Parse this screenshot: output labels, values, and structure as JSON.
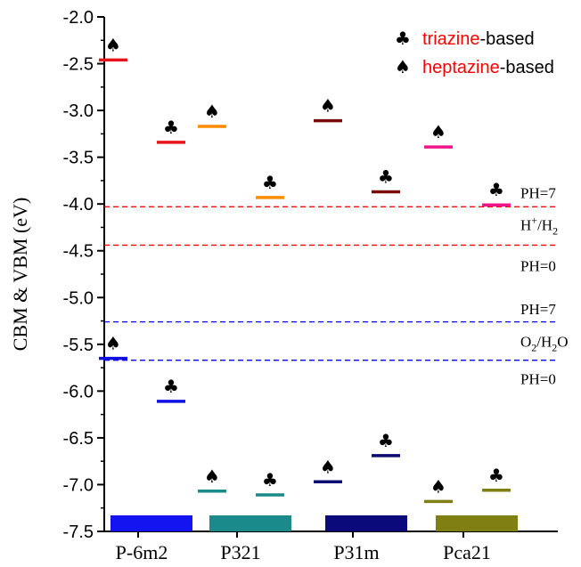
{
  "chart_data": {
    "type": "scatter",
    "ylabel": "CBM & VBM (eV)",
    "ylim": [
      -7.5,
      -2.0
    ],
    "ytick_step": 0.5,
    "ytick_labels": [
      "-2.0",
      "-2.5",
      "-3.0",
      "-3.5",
      "-4.0",
      "-4.5",
      "-5.0",
      "-5.5",
      "-6.0",
      "-6.5",
      "-7.0",
      "-7.5"
    ],
    "categories": [
      "P-6m2",
      "P321",
      "P31m",
      "Pca21"
    ],
    "legend": {
      "position": "top-right",
      "entries": [
        {
          "symbol": "♣",
          "highlight": "triazine",
          "rest": "-based",
          "highlight_color": "#ff0000"
        },
        {
          "symbol": "♠",
          "highlight": "heptazine",
          "rest": "-based",
          "highlight_color": "#ff0000"
        }
      ]
    },
    "levels": [
      {
        "category": "P-6m2",
        "type": "heptazine",
        "band": "CBM",
        "y": -2.46,
        "color": "#e8141c",
        "symbol": "♠"
      },
      {
        "category": "P-6m2",
        "type": "triazine",
        "band": "CBM",
        "y": -3.34,
        "color": "#e8141c",
        "symbol": "♣"
      },
      {
        "category": "P-6m2",
        "type": "heptazine",
        "band": "VBM",
        "y": -5.65,
        "color": "#1010e0",
        "symbol": "♠"
      },
      {
        "category": "P-6m2",
        "type": "triazine",
        "band": "VBM",
        "y": -6.11,
        "color": "#1010e0",
        "symbol": "♣"
      },
      {
        "category": "P321",
        "type": "heptazine",
        "band": "CBM",
        "y": -3.17,
        "color": "#ff8c00",
        "symbol": "♠"
      },
      {
        "category": "P321",
        "type": "triazine",
        "band": "CBM",
        "y": -3.93,
        "color": "#ff8c00",
        "symbol": "♣"
      },
      {
        "category": "P321",
        "type": "heptazine",
        "band": "VBM",
        "y": -7.07,
        "color": "#1a8a8a",
        "symbol": "♠"
      },
      {
        "category": "P321",
        "type": "triazine",
        "band": "VBM",
        "y": -7.11,
        "color": "#1a8a8a",
        "symbol": "♣"
      },
      {
        "category": "P31m",
        "type": "heptazine",
        "band": "CBM",
        "y": -3.11,
        "color": "#7a0a0a",
        "symbol": "♠"
      },
      {
        "category": "P31m",
        "type": "triazine",
        "band": "CBM",
        "y": -3.87,
        "color": "#7a0a0a",
        "symbol": "♣"
      },
      {
        "category": "P31m",
        "type": "heptazine",
        "band": "VBM",
        "y": -6.97,
        "color": "#0a0a70",
        "symbol": "♠"
      },
      {
        "category": "P31m",
        "type": "triazine",
        "band": "VBM",
        "y": -6.69,
        "color": "#0a0a70",
        "symbol": "♣"
      },
      {
        "category": "Pca21",
        "type": "heptazine",
        "band": "CBM",
        "y": -3.39,
        "color": "#f0148c",
        "symbol": "♠"
      },
      {
        "category": "Pca21",
        "type": "triazine",
        "band": "CBM",
        "y": -4.01,
        "color": "#f0148c",
        "symbol": "♣"
      },
      {
        "category": "Pca21",
        "type": "heptazine",
        "band": "VBM",
        "y": -7.18,
        "color": "#7f7f14",
        "symbol": "♠"
      },
      {
        "category": "Pca21",
        "type": "triazine",
        "band": "VBM",
        "y": -7.06,
        "color": "#7f7f14",
        "symbol": "♣"
      }
    ],
    "base_bars": [
      {
        "category": "P-6m2",
        "color": "#1414f0"
      },
      {
        "category": "P321",
        "color": "#1a8a8a"
      },
      {
        "category": "P31m",
        "color": "#0a0a7a"
      },
      {
        "category": "Pca21",
        "color": "#7f7f14"
      }
    ],
    "reference_lines": [
      {
        "y": -4.03,
        "color": "#ff0000",
        "style": "dashed"
      },
      {
        "y": -4.44,
        "color": "#ff0000",
        "style": "dashed"
      },
      {
        "y": -5.26,
        "color": "#0000ff",
        "style": "dashed"
      },
      {
        "y": -5.67,
        "color": "#0000ff",
        "style": "dashed"
      }
    ],
    "reference_labels": [
      {
        "text": "PH=7",
        "y": -3.88
      },
      {
        "text": "H",
        "sup": "+",
        "mid": "/H",
        "sub": "2",
        "y": -4.22
      },
      {
        "text": "PH=0",
        "y": -4.66
      },
      {
        "text": "PH=7",
        "y": -5.12
      },
      {
        "text": "O",
        "sub": "2",
        "mid": "/H",
        "sub2": "2",
        "tail": "O",
        "y": -5.47
      },
      {
        "text": "PH=0",
        "y": -5.87
      }
    ]
  }
}
